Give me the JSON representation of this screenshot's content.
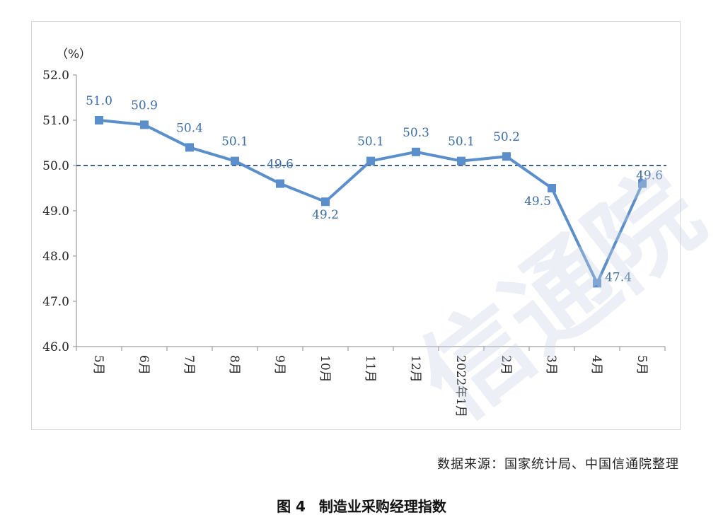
{
  "chart_data": {
    "type": "line",
    "ylabel": "（%）",
    "ylim": [
      46.0,
      52.0
    ],
    "yticks": [
      "52.0",
      "51.0",
      "50.0",
      "49.0",
      "48.0",
      "47.0",
      "46.0"
    ],
    "categories": [
      "5月",
      "6月",
      "7月",
      "8月",
      "9月",
      "10月",
      "11月",
      "12月",
      "2022年1月",
      "2月",
      "3月",
      "4月",
      "5月"
    ],
    "series": [
      {
        "values": [
          51.0,
          50.9,
          50.4,
          50.1,
          49.6,
          49.2,
          50.1,
          50.3,
          50.1,
          50.2,
          49.5,
          47.4,
          49.6
        ],
        "labels": [
          "51.0",
          "50.9",
          "50.4",
          "50.1",
          "49.6",
          "49.2",
          "50.1",
          "50.3",
          "50.1",
          "50.2",
          "49.5",
          "47.4",
          "49.6"
        ],
        "color": "#5b8fcb"
      }
    ],
    "reference_line": 50.0,
    "grid": false
  },
  "source_note": "数据来源：国家统计局、中国信通院整理",
  "caption": {
    "figure_no": "图 4",
    "title": "制造业采购经理指数"
  },
  "watermark": "信通院"
}
